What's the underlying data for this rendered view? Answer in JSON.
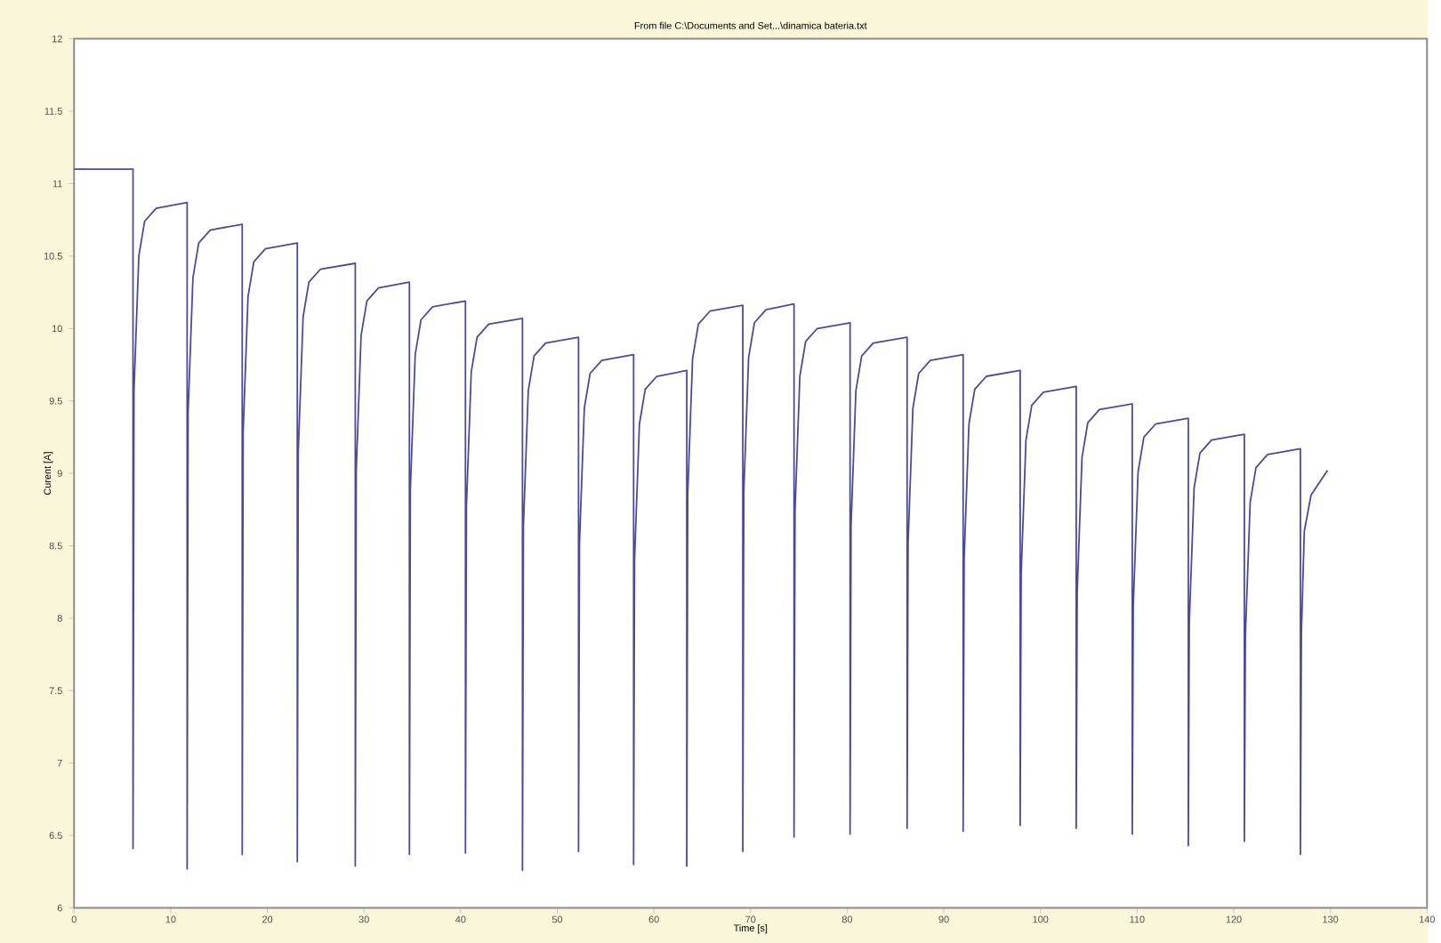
{
  "chart_data": {
    "type": "line",
    "title": "From file C:\\Documents and Set...\\dinamica bateria.txt",
    "xlabel": "Time [s]",
    "ylabel": "Curent [A]",
    "xlim": [
      0,
      140
    ],
    "xticks": [
      0,
      10,
      20,
      30,
      40,
      50,
      60,
      70,
      80,
      90,
      100,
      110,
      120,
      130,
      140
    ],
    "ylim": [
      6,
      12
    ],
    "yticks": [
      6,
      6.5,
      7,
      7.5,
      8,
      8.5,
      9,
      9.5,
      10,
      10.5,
      11,
      11.5,
      12
    ],
    "grid": false,
    "marker": "none",
    "line_style": "solid",
    "series": [
      {
        "color": "#4a4a9c",
        "x": [
          0,
          6.1,
          6.1,
          6.2,
          6.7,
          7.3,
          8.5,
          11.7,
          11.7,
          11.8,
          12.3,
          12.9,
          14.1,
          17.4,
          17.4,
          17.5,
          18.0,
          18.6,
          19.8,
          23.1,
          23.1,
          23.2,
          23.7,
          24.3,
          25.5,
          29.1,
          29.1,
          29.2,
          29.7,
          30.3,
          31.5,
          34.7,
          34.7,
          34.8,
          35.3,
          35.9,
          37.1,
          40.5,
          40.5,
          40.6,
          41.1,
          41.7,
          42.9,
          46.4,
          46.4,
          46.5,
          47.0,
          47.6,
          48.8,
          52.2,
          52.2,
          52.3,
          52.8,
          53.4,
          54.6,
          57.9,
          57.9,
          58.0,
          58.5,
          59.1,
          60.3,
          63.4,
          63.4,
          63.5,
          64.0,
          64.6,
          65.8,
          69.2,
          69.2,
          69.3,
          69.8,
          70.4,
          71.6,
          74.5,
          74.5,
          74.6,
          75.1,
          75.7,
          76.9,
          80.3,
          80.3,
          80.4,
          80.9,
          81.5,
          82.7,
          86.2,
          86.2,
          86.3,
          86.8,
          87.4,
          88.6,
          92.0,
          92.0,
          92.1,
          92.6,
          93.2,
          94.4,
          97.9,
          97.9,
          98.0,
          98.5,
          99.1,
          100.3,
          103.7,
          103.7,
          103.8,
          104.3,
          104.9,
          106.1,
          109.5,
          109.5,
          109.6,
          110.1,
          110.7,
          111.9,
          115.3,
          115.3,
          115.4,
          115.9,
          116.5,
          117.7,
          121.1,
          121.1,
          121.2,
          121.7,
          122.3,
          123.5,
          126.9,
          126.9,
          127.0,
          127.3,
          128.0,
          129.7
        ],
        "values": [
          11.1,
          11.1,
          6.41,
          9.57,
          10.5,
          10.74,
          10.83,
          10.87,
          6.27,
          9.42,
          10.35,
          10.59,
          10.68,
          10.72,
          6.37,
          9.29,
          10.22,
          10.46,
          10.55,
          10.59,
          6.32,
          9.15,
          10.08,
          10.32,
          10.41,
          10.45,
          6.29,
          9.02,
          9.95,
          10.19,
          10.28,
          10.32,
          6.37,
          8.89,
          9.82,
          10.06,
          10.15,
          10.19,
          6.38,
          8.77,
          9.7,
          9.94,
          10.03,
          10.07,
          6.26,
          8.64,
          9.57,
          9.81,
          9.9,
          9.94,
          6.39,
          8.52,
          9.45,
          9.69,
          9.78,
          9.82,
          6.3,
          8.41,
          9.34,
          9.58,
          9.67,
          9.71,
          6.29,
          8.86,
          9.79,
          10.03,
          10.12,
          10.16,
          6.39,
          8.87,
          9.8,
          10.04,
          10.13,
          10.17,
          6.49,
          8.74,
          9.67,
          9.91,
          10.0,
          10.04,
          6.51,
          8.64,
          9.57,
          9.81,
          9.9,
          9.94,
          6.55,
          8.52,
          9.45,
          9.69,
          9.78,
          9.82,
          6.53,
          8.41,
          9.34,
          9.58,
          9.67,
          9.71,
          6.57,
          8.3,
          9.23,
          9.47,
          9.56,
          9.6,
          6.55,
          8.18,
          9.11,
          9.35,
          9.44,
          9.48,
          6.51,
          8.08,
          9.01,
          9.25,
          9.34,
          9.38,
          6.43,
          7.97,
          8.9,
          9.14,
          9.23,
          9.27,
          6.46,
          7.87,
          8.8,
          9.04,
          9.13,
          9.17,
          6.37,
          7.9,
          8.6,
          8.85,
          9.02
        ]
      }
    ]
  }
}
